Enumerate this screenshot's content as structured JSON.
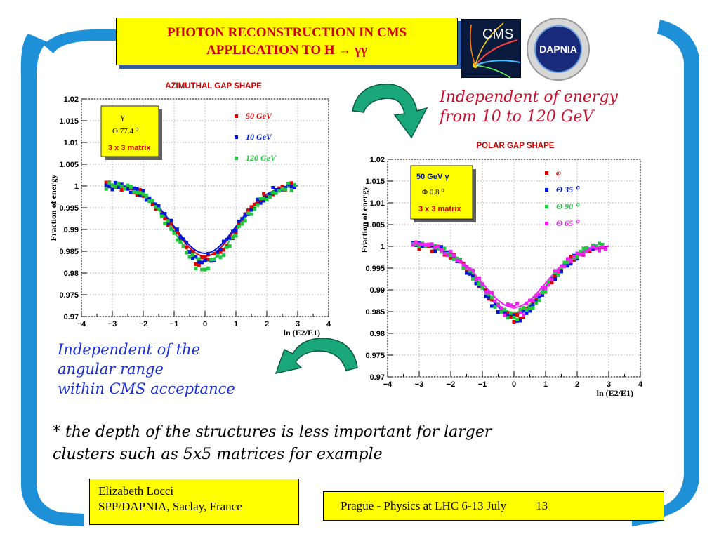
{
  "slide": {
    "title_line1": "PHOTON  RECONSTRUCTION  IN  CMS",
    "title_line2": "APPLICATION  TO  H  →  γγ",
    "logo_cms_text": "CMS",
    "logo_dapnia_text": "DAPNIA",
    "note_energy_line1": "Independent of energy",
    "note_energy_line2": "from 10 to 120 GeV",
    "note_angle_line1": "Independent of the",
    "note_angle_line2": "angular range",
    "note_angle_line3": "within CMS acceptance",
    "footnote_line1": "* the depth of the structures is less important for larger",
    "footnote_line2": "clusters such as 5x5  matrices for example",
    "author_line1": "Elizabeth Locci",
    "author_line2": "SPP/DAPNIA, Saclay, France",
    "footer_text": "Prague - Physics at LHC 6-13 July",
    "page_number": "13"
  },
  "colors": {
    "title_bg": "#ffff00",
    "title_text": "#d00000",
    "shadow": "#2a5fae",
    "frame": "#1e90d8",
    "arrow": "#1aa87a"
  },
  "chart_data": [
    {
      "type": "scatter",
      "title": "AZIMUTHAL GAP SHAPE",
      "xlabel": "ln (E2/E1)",
      "ylabel": "Fraction of energy",
      "xlim": [
        -4,
        4
      ],
      "ylim": [
        0.97,
        1.02
      ],
      "xticks": [
        "−4",
        "−3",
        "−2",
        "−1",
        "0",
        "1",
        "2",
        "3",
        "4"
      ],
      "yticks": [
        "0.97",
        "0.975",
        "0.98",
        "0.985",
        "0.99",
        "0.995",
        "1",
        "1.005",
        "1.01",
        "1.015",
        "1.02"
      ],
      "grid": true,
      "infobox": [
        "γ",
        "Θ  77.4 ⁰",
        "3 x 3 matrix"
      ],
      "series": [
        {
          "name": "50 GeV",
          "color": "#e00000",
          "depth": 0.0172
        },
        {
          "name": "10 GeV",
          "color": "#0018d8",
          "depth": 0.0165
        },
        {
          "name": "120 GeV",
          "color": "#22c840",
          "depth": 0.0185
        }
      ]
    },
    {
      "type": "scatter",
      "title": "POLAR GAP SHAPE",
      "xlabel": "ln (E2/E1)",
      "ylabel": "Fraction of energy",
      "xlim": [
        -4,
        4
      ],
      "ylim": [
        0.97,
        1.02
      ],
      "xticks": [
        "−4",
        "−3",
        "−2",
        "−1",
        "0",
        "1",
        "2",
        "3",
        "4"
      ],
      "yticks": [
        "0.97",
        "0.975",
        "0.98",
        "0.985",
        "0.99",
        "0.995",
        "1",
        "1.005",
        "1.01",
        "1.015",
        "1.02"
      ],
      "grid": true,
      "infobox": [
        "50 GeV   γ",
        "Φ   0.8 ⁰",
        "3 x 3 matrix"
      ],
      "series": [
        {
          "name": "φ",
          "color": "#e00000",
          "depth": 0.0165
        },
        {
          "name": "Θ  35 ⁰",
          "color": "#0018d8",
          "depth": 0.0168
        },
        {
          "name": "Θ  90 ⁰",
          "color": "#22c840",
          "depth": 0.0162
        },
        {
          "name": "Θ  65 ⁰",
          "color": "#ee22ee",
          "depth": 0.015
        }
      ]
    }
  ]
}
